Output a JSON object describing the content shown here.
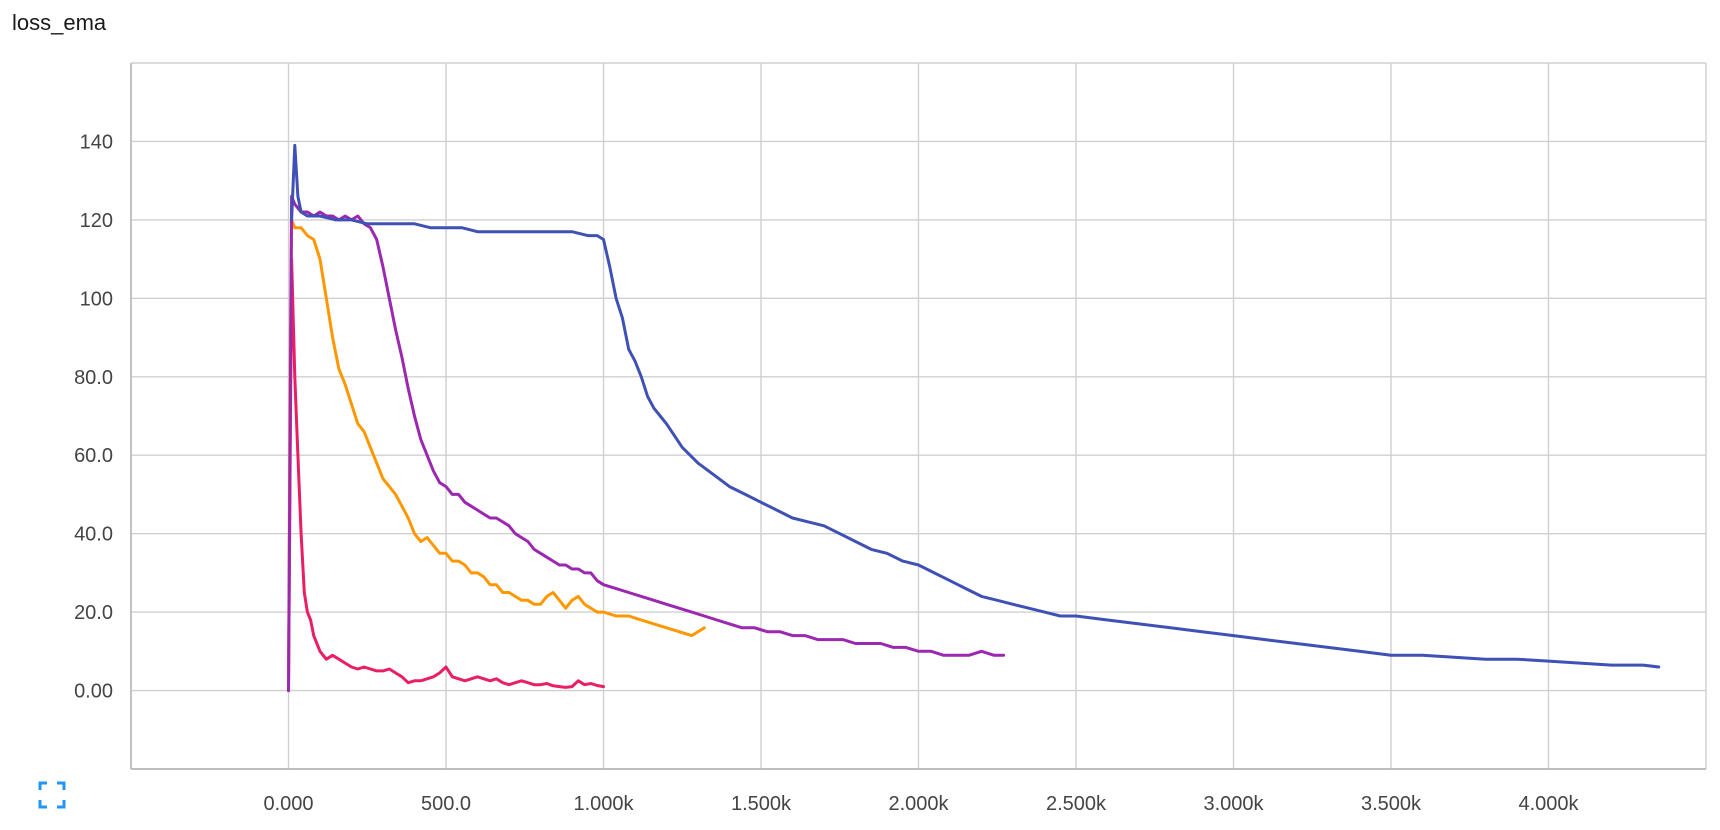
{
  "chart_data": {
    "type": "line",
    "title": "loss_ema",
    "xlabel": "",
    "ylabel": "",
    "xlim": [
      -500,
      4500
    ],
    "ylim": [
      -20,
      160
    ],
    "grid": true,
    "legend": "none",
    "x_ticks": [
      {
        "value": 0,
        "label": "0.000"
      },
      {
        "value": 500,
        "label": "500.0"
      },
      {
        "value": 1000,
        "label": "1.000k"
      },
      {
        "value": 1500,
        "label": "1.500k"
      },
      {
        "value": 2000,
        "label": "2.000k"
      },
      {
        "value": 2500,
        "label": "2.500k"
      },
      {
        "value": 3000,
        "label": "3.000k"
      },
      {
        "value": 3500,
        "label": "3.500k"
      },
      {
        "value": 4000,
        "label": "4.000k"
      }
    ],
    "y_ticks": [
      {
        "value": 140,
        "label": "140"
      },
      {
        "value": 120,
        "label": "120"
      },
      {
        "value": 100,
        "label": "100"
      },
      {
        "value": 80,
        "label": "80.0"
      },
      {
        "value": 60,
        "label": "60.0"
      },
      {
        "value": 40,
        "label": "40.0"
      },
      {
        "value": 20,
        "label": "20.0"
      },
      {
        "value": 0,
        "label": "0.00"
      }
    ],
    "series": [
      {
        "color": "#e91e63",
        "x": [
          0,
          10,
          20,
          30,
          40,
          50,
          60,
          70,
          80,
          100,
          120,
          140,
          160,
          180,
          200,
          220,
          240,
          260,
          280,
          300,
          320,
          340,
          360,
          380,
          400,
          420,
          440,
          460,
          480,
          500,
          520,
          540,
          560,
          580,
          600,
          620,
          640,
          660,
          680,
          700,
          720,
          740,
          760,
          780,
          800,
          820,
          840,
          860,
          880,
          900,
          920,
          940,
          960,
          980,
          1000
        ],
        "values": [
          0,
          110,
          80,
          60,
          40,
          25,
          20,
          18,
          14,
          10,
          8,
          9,
          8,
          7,
          6,
          5.5,
          6,
          5.5,
          5,
          5,
          5.5,
          4.5,
          3.5,
          2,
          2.5,
          2.5,
          3,
          3.5,
          4.5,
          6,
          3.5,
          3,
          2.5,
          3,
          3.5,
          3,
          2.5,
          3,
          2,
          1.5,
          2,
          2.5,
          2,
          1.5,
          1.5,
          1.8,
          1.2,
          1,
          0.8,
          1,
          2.5,
          1.5,
          1.8,
          1.3,
          1
        ]
      },
      {
        "color": "#ff9800",
        "x": [
          0,
          5,
          10,
          20,
          40,
          60,
          80,
          100,
          120,
          140,
          160,
          180,
          200,
          220,
          240,
          260,
          280,
          300,
          320,
          340,
          360,
          380,
          400,
          420,
          440,
          460,
          480,
          500,
          520,
          540,
          560,
          580,
          600,
          620,
          640,
          660,
          680,
          700,
          720,
          740,
          760,
          780,
          800,
          820,
          840,
          860,
          880,
          900,
          920,
          940,
          960,
          980,
          1000,
          1040,
          1080,
          1120,
          1160,
          1200,
          1240,
          1280,
          1320
        ],
        "values": [
          0,
          80,
          120,
          118,
          118,
          116,
          115,
          110,
          100,
          90,
          82,
          78,
          73,
          68,
          66,
          62,
          58,
          54,
          52,
          50,
          47,
          44,
          40,
          38,
          39,
          37,
          35,
          35,
          33,
          33,
          32,
          30,
          30,
          29,
          27,
          27,
          25,
          25,
          24,
          23,
          23,
          22,
          22,
          24,
          25,
          23,
          21,
          23,
          24,
          22,
          21,
          20,
          20,
          19,
          19,
          18,
          17,
          16,
          15,
          14,
          16
        ]
      },
      {
        "color": "#9c27b0",
        "x": [
          0,
          10,
          20,
          40,
          60,
          80,
          100,
          120,
          140,
          160,
          180,
          200,
          220,
          240,
          260,
          280,
          300,
          320,
          340,
          360,
          380,
          400,
          420,
          440,
          460,
          480,
          500,
          520,
          540,
          560,
          580,
          600,
          620,
          640,
          660,
          680,
          700,
          720,
          740,
          760,
          780,
          800,
          820,
          840,
          860,
          880,
          900,
          920,
          940,
          960,
          980,
          1000,
          1040,
          1080,
          1120,
          1160,
          1200,
          1240,
          1280,
          1320,
          1360,
          1400,
          1440,
          1480,
          1520,
          1560,
          1600,
          1640,
          1680,
          1720,
          1760,
          1800,
          1840,
          1880,
          1920,
          1960,
          2000,
          2040,
          2080,
          2120,
          2160,
          2200,
          2240,
          2270
        ],
        "values": [
          0,
          126,
          124,
          122,
          122,
          121,
          122,
          121,
          121,
          120,
          121,
          120,
          121,
          119,
          118,
          115,
          108,
          100,
          92,
          85,
          77,
          70,
          64,
          60,
          56,
          53,
          52,
          50,
          50,
          48,
          47,
          46,
          45,
          44,
          44,
          43,
          42,
          40,
          39,
          38,
          36,
          35,
          34,
          33,
          32,
          32,
          31,
          31,
          30,
          30,
          28,
          27,
          26,
          25,
          24,
          23,
          22,
          21,
          20,
          19,
          18,
          17,
          16,
          16,
          15,
          15,
          14,
          14,
          13,
          13,
          13,
          12,
          12,
          12,
          11,
          11,
          10,
          10,
          9,
          9,
          9,
          10,
          9,
          9
        ]
      },
      {
        "color": "#3f51b5",
        "x": [
          10,
          20,
          30,
          40,
          60,
          80,
          100,
          150,
          200,
          250,
          300,
          350,
          400,
          450,
          500,
          550,
          600,
          650,
          700,
          750,
          800,
          850,
          900,
          950,
          980,
          1000,
          1020,
          1040,
          1060,
          1080,
          1100,
          1120,
          1140,
          1160,
          1180,
          1200,
          1250,
          1300,
          1350,
          1400,
          1450,
          1500,
          1550,
          1600,
          1650,
          1700,
          1750,
          1800,
          1850,
          1900,
          1950,
          2000,
          2050,
          2100,
          2150,
          2200,
          2250,
          2300,
          2350,
          2400,
          2450,
          2500,
          2600,
          2700,
          2800,
          2900,
          3000,
          3100,
          3200,
          3300,
          3400,
          3500,
          3600,
          3700,
          3800,
          3900,
          4000,
          4100,
          4200,
          4300,
          4350
        ],
        "values": [
          120,
          139,
          126,
          122,
          121,
          121,
          121,
          120,
          120,
          119,
          119,
          119,
          119,
          118,
          118,
          118,
          117,
          117,
          117,
          117,
          117,
          117,
          117,
          116,
          116,
          115,
          108,
          100,
          95,
          87,
          84,
          80,
          75,
          72,
          70,
          68,
          62,
          58,
          55,
          52,
          50,
          48,
          46,
          44,
          43,
          42,
          40,
          38,
          36,
          35,
          33,
          32,
          30,
          28,
          26,
          24,
          23,
          22,
          21,
          20,
          19,
          19,
          18,
          17,
          16,
          15,
          14,
          13,
          12,
          11,
          10,
          9,
          9,
          8.5,
          8,
          8,
          7.5,
          7,
          6.5,
          6.5,
          6
        ]
      }
    ]
  },
  "controls": {
    "expand_icon": "fullscreen-corners-icon",
    "accent_color": "#2196f3"
  }
}
